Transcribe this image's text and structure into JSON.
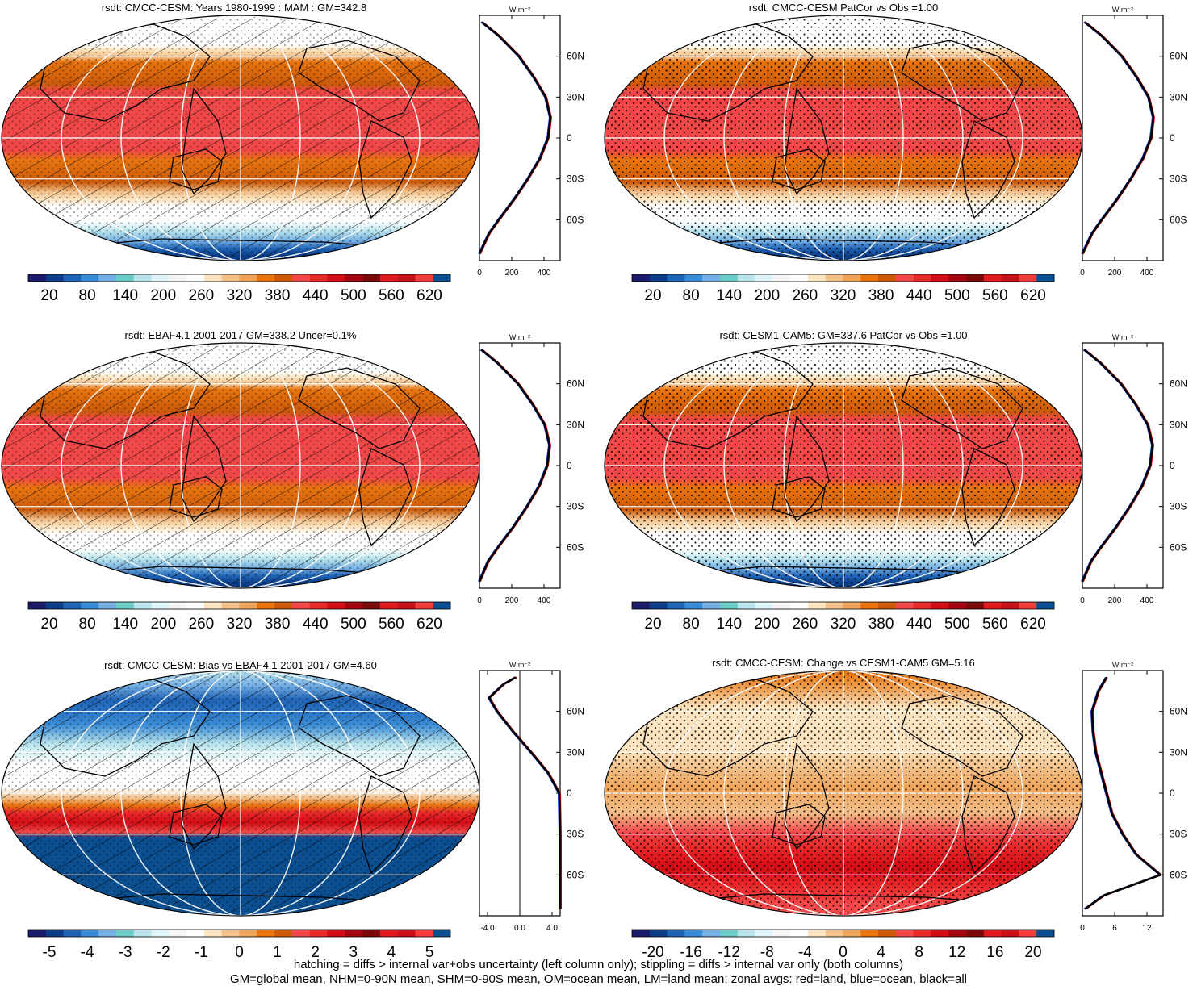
{
  "variable": "rsdt",
  "colors": {
    "abs_palette": [
      "#1b1b6b",
      "#0c3d86",
      "#1f63b5",
      "#3a8bd6",
      "#74aee3",
      "#6ccbc7",
      "#b9e4ec",
      "#def6f9",
      "#f5f5f5",
      "#ffffff",
      "#fbe4bf",
      "#f3c08a",
      "#eea35a",
      "#e7740f",
      "#cb5a0a",
      "#f04848",
      "#e8292a",
      "#d20d15",
      "#a30510",
      "#7a0a0a",
      "#e0191f",
      "#c81019",
      "#f23b3b",
      "#0b4f91"
    ],
    "diff_palette": [
      "#1b1b6b",
      "#0c3d86",
      "#1f63b5",
      "#3a8bd6",
      "#74aee3",
      "#6ccbc7",
      "#b9e4ec",
      "#def6f9",
      "#f5f5f5",
      "#ffffff",
      "#fbe4bf",
      "#f3c08a",
      "#eea35a",
      "#e7740f",
      "#cb5a0a",
      "#f04848",
      "#e8292a",
      "#d20d15",
      "#a30510",
      "#7a0a0a",
      "#e0191f",
      "#c81019",
      "#f23b3b",
      "#0b4f91"
    ],
    "zonal_all": "#000000",
    "zonal_land": "#e01010",
    "zonal_ocean": "#1030d0"
  },
  "chart_data": [
    {
      "id": "model-mean",
      "type": "heatmap",
      "title": "rsdt: CMCC-CESM: Years 1980-1999 : MAM : GM=342.8",
      "overlay": "hatching",
      "colorbar_labels": [
        "20",
        "80",
        "140",
        "200",
        "260",
        "320",
        "380",
        "440",
        "500",
        "560",
        "620"
      ],
      "zonal_xticks": [
        "0",
        "200",
        "400"
      ],
      "zonal_yticks": [
        "60N",
        "30N",
        "0",
        "30S",
        "60S"
      ],
      "zonal_unit": "W m⁻²",
      "zonal_xrange": [
        0,
        500
      ],
      "zonal_profile_lat": [
        -85,
        -70,
        -60,
        -45,
        -30,
        -15,
        0,
        15,
        30,
        45,
        60,
        75,
        85
      ],
      "zonal_profile_val": [
        0,
        60,
        120,
        215,
        300,
        375,
        425,
        440,
        410,
        335,
        245,
        120,
        15
      ]
    },
    {
      "id": "patcor-model",
      "type": "heatmap",
      "title": "rsdt: CMCC-CESM PatCor vs Obs =1.00",
      "overlay": "stippling",
      "colorbar_labels": [
        "20",
        "80",
        "140",
        "200",
        "260",
        "320",
        "380",
        "440",
        "500",
        "560",
        "620"
      ],
      "zonal_xticks": [
        "0",
        "200",
        "400"
      ],
      "zonal_yticks": [
        "60N",
        "30N",
        "0",
        "30S",
        "60S"
      ],
      "zonal_unit": "W m⁻²",
      "zonal_xrange": [
        0,
        500
      ],
      "zonal_profile_lat": [
        -85,
        -70,
        -60,
        -45,
        -30,
        -15,
        0,
        15,
        30,
        45,
        60,
        75,
        85
      ],
      "zonal_profile_val": [
        0,
        60,
        120,
        215,
        300,
        375,
        425,
        440,
        410,
        335,
        245,
        120,
        15
      ]
    },
    {
      "id": "obs",
      "type": "heatmap",
      "title": "rsdt: EBAF4.1 2001-2017 GM=338.2 Uncer=0.1%",
      "overlay": "hatching",
      "colorbar_labels": [
        "20",
        "80",
        "140",
        "200",
        "260",
        "320",
        "380",
        "440",
        "500",
        "560",
        "620"
      ],
      "zonal_xticks": [
        "0",
        "200",
        "400"
      ],
      "zonal_yticks": [
        "60N",
        "30N",
        "0",
        "30S",
        "60S"
      ],
      "zonal_unit": "W m⁻²",
      "zonal_xrange": [
        0,
        500
      ],
      "zonal_profile_lat": [
        -85,
        -70,
        -60,
        -45,
        -30,
        -15,
        0,
        15,
        30,
        45,
        60,
        75,
        85
      ],
      "zonal_profile_val": [
        0,
        55,
        115,
        210,
        295,
        370,
        420,
        435,
        405,
        330,
        240,
        115,
        12
      ]
    },
    {
      "id": "other-model",
      "type": "heatmap",
      "title": "rsdt: CESM1-CAM5: GM=337.6 PatCor vs Obs =1.00",
      "overlay": "stippling",
      "colorbar_labels": [
        "20",
        "80",
        "140",
        "200",
        "260",
        "320",
        "380",
        "440",
        "500",
        "560",
        "620"
      ],
      "zonal_xticks": [
        "0",
        "200",
        "400"
      ],
      "zonal_yticks": [
        "60N",
        "30N",
        "0",
        "30S",
        "60S"
      ],
      "zonal_unit": "W m⁻²",
      "zonal_xrange": [
        0,
        500
      ],
      "zonal_profile_lat": [
        -85,
        -70,
        -60,
        -45,
        -30,
        -15,
        0,
        15,
        30,
        45,
        60,
        75,
        85
      ],
      "zonal_profile_val": [
        0,
        55,
        115,
        210,
        295,
        370,
        420,
        435,
        405,
        330,
        240,
        115,
        12
      ]
    },
    {
      "id": "bias",
      "type": "heatmap",
      "title": "rsdt: CMCC-CESM: Bias vs EBAF4.1 2001-2017 GM=4.60",
      "overlay": "hatching",
      "colorbar_labels": [
        "-5",
        "-4",
        "-3",
        "-2",
        "-1",
        "0",
        "1",
        "2",
        "3",
        "4",
        "5"
      ],
      "zonal_xticks": [
        "-4.0",
        "0.0",
        "4.0"
      ],
      "zonal_yticks": [
        "60N",
        "30N",
        "0",
        "30S",
        "60S"
      ],
      "zonal_unit": "W m⁻²",
      "zonal_xrange": [
        -5,
        5
      ],
      "zonal_profile_lat": [
        -85,
        -80,
        -60,
        -30,
        0,
        15,
        30,
        45,
        60,
        70,
        80,
        85
      ],
      "zonal_profile_val": [
        5.0,
        5.0,
        5.0,
        5.0,
        4.9,
        3.5,
        1.4,
        -0.8,
        -2.8,
        -3.8,
        -2.0,
        -0.5
      ]
    },
    {
      "id": "change",
      "type": "heatmap",
      "title": "rsdt: CMCC-CESM: Change vs CESM1-CAM5 GM=5.16",
      "overlay": "stippling",
      "colorbar_labels": [
        "-20",
        "-16",
        "-12",
        "-8",
        "-4",
        "0",
        "4",
        "8",
        "12",
        "16",
        "20"
      ],
      "zonal_xticks": [
        "0",
        "6",
        "12"
      ],
      "zonal_yticks": [
        "60N",
        "30N",
        "0",
        "30S",
        "60S"
      ],
      "zonal_unit": "W m⁻²",
      "zonal_xrange": [
        0,
        15
      ],
      "zonal_profile_lat": [
        -85,
        -75,
        -60,
        -45,
        -30,
        -15,
        0,
        15,
        30,
        45,
        60,
        75,
        85
      ],
      "zonal_profile_val": [
        0.5,
        4,
        14.5,
        10,
        7.5,
        5.5,
        4.5,
        3.5,
        2.5,
        2,
        1.8,
        3,
        4.5
      ]
    }
  ],
  "footer": {
    "line1": "hatching = diffs > internal var+obs uncertainty (left column only); stippling = diffs > internal var only (both columns)",
    "line2": "GM=global mean, NHM=0-90N mean, SHM=0-90S mean, OM=ocean mean, LM=land mean; zonal avgs: red=land, blue=ocean, black=all"
  }
}
